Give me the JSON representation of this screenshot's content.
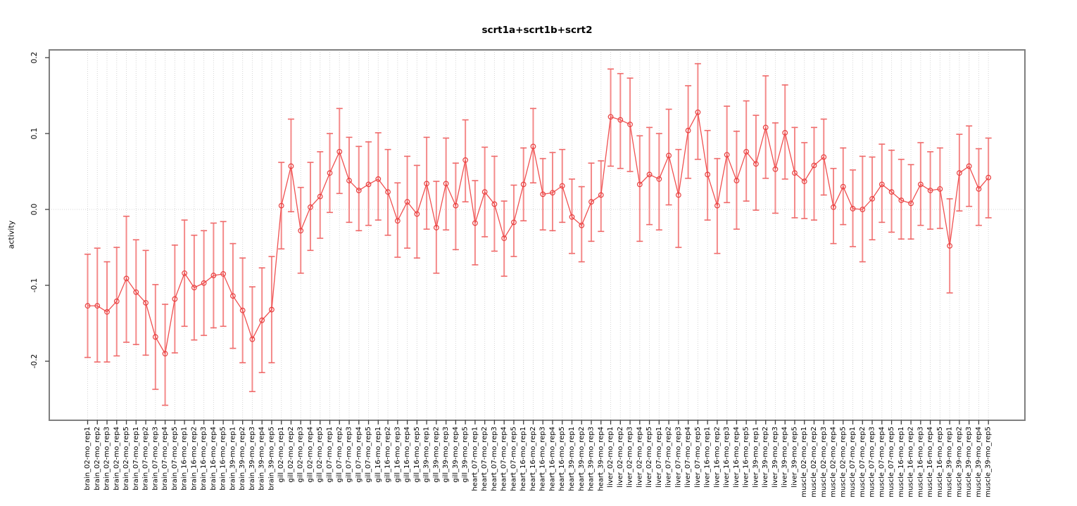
{
  "figure": {
    "title": "scrt1a+scrt1b+scrt2",
    "y_axis_label": "activity"
  },
  "chart_data": {
    "type": "line",
    "subtype": "points-with-error-bars",
    "title": "scrt1a+scrt1b+scrt2",
    "xlabel": "",
    "ylabel": "activity",
    "ylim": [
      -0.278,
      0.21
    ],
    "yticks": [
      "0.2",
      "0.1",
      "0.0",
      "-0.1",
      "-0.2"
    ],
    "ytick_values": [
      0.2,
      0.1,
      0.0,
      -0.1,
      -0.2
    ],
    "grid": "vertical dotted gridline at every category; dotted horizontal line at 0.0",
    "legend_position": "none",
    "marker": "open-circle",
    "categories_note": "tissue_age-mo_replicate; heart has no 02-mo group and heart_39-mo has only 4 reps (94 points total)",
    "points": [
      {
        "label": "brain_02-mo_rep1",
        "y": -0.127,
        "lo": -0.195,
        "hi": -0.059
      },
      {
        "label": "brain_02-mo_rep2",
        "y": -0.127,
        "lo": -0.201,
        "hi": -0.051
      },
      {
        "label": "brain_02-mo_rep3",
        "y": -0.135,
        "lo": -0.201,
        "hi": -0.069
      },
      {
        "label": "brain_02-mo_rep4",
        "y": -0.121,
        "lo": -0.193,
        "hi": -0.05
      },
      {
        "label": "brain_02-mo_rep5",
        "y": -0.091,
        "lo": -0.175,
        "hi": -0.009
      },
      {
        "label": "brain_07-mo_rep1",
        "y": -0.109,
        "lo": -0.178,
        "hi": -0.04
      },
      {
        "label": "brain_07-mo_rep2",
        "y": -0.123,
        "lo": -0.192,
        "hi": -0.054
      },
      {
        "label": "brain_07-mo_rep3",
        "y": -0.168,
        "lo": -0.237,
        "hi": -0.099
      },
      {
        "label": "brain_07-mo_rep4",
        "y": -0.19,
        "lo": -0.258,
        "hi": -0.125
      },
      {
        "label": "brain_07-mo_rep5",
        "y": -0.118,
        "lo": -0.189,
        "hi": -0.047
      },
      {
        "label": "brain_16-mo_rep1",
        "y": -0.084,
        "lo": -0.154,
        "hi": -0.014
      },
      {
        "label": "brain_16-mo_rep2",
        "y": -0.103,
        "lo": -0.172,
        "hi": -0.034
      },
      {
        "label": "brain_16-mo_rep3",
        "y": -0.097,
        "lo": -0.166,
        "hi": -0.028
      },
      {
        "label": "brain_16-mo_rep4",
        "y": -0.087,
        "lo": -0.156,
        "hi": -0.018
      },
      {
        "label": "brain_16-mo_rep5",
        "y": -0.085,
        "lo": -0.154,
        "hi": -0.016
      },
      {
        "label": "brain_39-mo_rep1",
        "y": -0.114,
        "lo": -0.183,
        "hi": -0.045
      },
      {
        "label": "brain_39-mo_rep2",
        "y": -0.133,
        "lo": -0.202,
        "hi": -0.064
      },
      {
        "label": "brain_39-mo_rep3",
        "y": -0.171,
        "lo": -0.24,
        "hi": -0.102
      },
      {
        "label": "brain_39-mo_rep4",
        "y": -0.146,
        "lo": -0.215,
        "hi": -0.077
      },
      {
        "label": "brain_39-mo_rep5",
        "y": -0.132,
        "lo": -0.202,
        "hi": -0.062
      },
      {
        "label": "gill_02-mo_rep1",
        "y": 0.005,
        "lo": -0.052,
        "hi": 0.062
      },
      {
        "label": "gill_02-mo_rep2",
        "y": 0.057,
        "lo": -0.003,
        "hi": 0.119
      },
      {
        "label": "gill_02-mo_rep3",
        "y": -0.028,
        "lo": -0.084,
        "hi": 0.029
      },
      {
        "label": "gill_02-mo_rep4",
        "y": 0.003,
        "lo": -0.054,
        "hi": 0.062
      },
      {
        "label": "gill_02-mo_rep5",
        "y": 0.017,
        "lo": -0.038,
        "hi": 0.076
      },
      {
        "label": "gill_07-mo_rep1",
        "y": 0.048,
        "lo": -0.004,
        "hi": 0.1
      },
      {
        "label": "gill_07-mo_rep2",
        "y": 0.076,
        "lo": 0.021,
        "hi": 0.133
      },
      {
        "label": "gill_07-mo_rep3",
        "y": 0.038,
        "lo": -0.017,
        "hi": 0.095
      },
      {
        "label": "gill_07-mo_rep4",
        "y": 0.025,
        "lo": -0.028,
        "hi": 0.083
      },
      {
        "label": "gill_07-mo_rep5",
        "y": 0.033,
        "lo": -0.021,
        "hi": 0.089
      },
      {
        "label": "gill_16-mo_rep1",
        "y": 0.04,
        "lo": -0.014,
        "hi": 0.101
      },
      {
        "label": "gill_16-mo_rep2",
        "y": 0.023,
        "lo": -0.034,
        "hi": 0.079
      },
      {
        "label": "gill_16-mo_rep3",
        "y": -0.015,
        "lo": -0.063,
        "hi": 0.035
      },
      {
        "label": "gill_16-mo_rep4",
        "y": 0.01,
        "lo": -0.051,
        "hi": 0.07
      },
      {
        "label": "gill_16-mo_rep5",
        "y": -0.006,
        "lo": -0.064,
        "hi": 0.058
      },
      {
        "label": "gill_39-mo_rep1",
        "y": 0.034,
        "lo": -0.026,
        "hi": 0.095
      },
      {
        "label": "gill_39-mo_rep2",
        "y": -0.024,
        "lo": -0.084,
        "hi": 0.037
      },
      {
        "label": "gill_39-mo_rep3",
        "y": 0.034,
        "lo": -0.027,
        "hi": 0.094
      },
      {
        "label": "gill_39-mo_rep4",
        "y": 0.005,
        "lo": -0.053,
        "hi": 0.061
      },
      {
        "label": "gill_39-mo_rep5",
        "y": 0.065,
        "lo": 0.01,
        "hi": 0.118
      },
      {
        "label": "heart_07-mo_rep1",
        "y": -0.018,
        "lo": -0.073,
        "hi": 0.038
      },
      {
        "label": "heart_07-mo_rep2",
        "y": 0.023,
        "lo": -0.036,
        "hi": 0.082
      },
      {
        "label": "heart_07-mo_rep3",
        "y": 0.007,
        "lo": -0.055,
        "hi": 0.07
      },
      {
        "label": "heart_07-mo_rep4",
        "y": -0.038,
        "lo": -0.088,
        "hi": 0.011
      },
      {
        "label": "heart_07-mo_rep5",
        "y": -0.017,
        "lo": -0.062,
        "hi": 0.032
      },
      {
        "label": "heart_16-mo_rep1",
        "y": 0.033,
        "lo": -0.015,
        "hi": 0.081
      },
      {
        "label": "heart_16-mo_rep2",
        "y": 0.083,
        "lo": 0.035,
        "hi": 0.133
      },
      {
        "label": "heart_16-mo_rep3",
        "y": 0.02,
        "lo": -0.027,
        "hi": 0.067
      },
      {
        "label": "heart_16-mo_rep4",
        "y": 0.022,
        "lo": -0.028,
        "hi": 0.075
      },
      {
        "label": "heart_16-mo_rep5",
        "y": 0.031,
        "lo": -0.017,
        "hi": 0.079
      },
      {
        "label": "heart_39-mo_rep1",
        "y": -0.01,
        "lo": -0.058,
        "hi": 0.04
      },
      {
        "label": "heart_39-mo_rep2",
        "y": -0.021,
        "lo": -0.069,
        "hi": 0.03
      },
      {
        "label": "heart_39-mo_rep3",
        "y": 0.01,
        "lo": -0.042,
        "hi": 0.061
      },
      {
        "label": "heart_39-mo_rep4",
        "y": 0.019,
        "lo": -0.029,
        "hi": 0.064
      },
      {
        "label": "liver_02-mo_rep1",
        "y": 0.122,
        "lo": 0.057,
        "hi": 0.185
      },
      {
        "label": "liver_02-mo_rep2",
        "y": 0.118,
        "lo": 0.054,
        "hi": 0.179
      },
      {
        "label": "liver_02-mo_rep3",
        "y": 0.112,
        "lo": 0.05,
        "hi": 0.173
      },
      {
        "label": "liver_02-mo_rep4",
        "y": 0.033,
        "lo": -0.042,
        "hi": 0.097
      },
      {
        "label": "liver_02-mo_rep5",
        "y": 0.046,
        "lo": -0.02,
        "hi": 0.108
      },
      {
        "label": "liver_07-mo_rep1",
        "y": 0.04,
        "lo": -0.027,
        "hi": 0.1
      },
      {
        "label": "liver_07-mo_rep2",
        "y": 0.071,
        "lo": 0.006,
        "hi": 0.132
      },
      {
        "label": "liver_07-mo_rep3",
        "y": 0.019,
        "lo": -0.05,
        "hi": 0.079
      },
      {
        "label": "liver_07-mo_rep4",
        "y": 0.104,
        "lo": 0.041,
        "hi": 0.163
      },
      {
        "label": "liver_07-mo_rep5",
        "y": 0.128,
        "lo": 0.066,
        "hi": 0.192
      },
      {
        "label": "liver_16-mo_rep1",
        "y": 0.046,
        "lo": -0.014,
        "hi": 0.104
      },
      {
        "label": "liver_16-mo_rep2",
        "y": 0.005,
        "lo": -0.058,
        "hi": 0.067
      },
      {
        "label": "liver_16-mo_rep3",
        "y": 0.072,
        "lo": 0.009,
        "hi": 0.136
      },
      {
        "label": "liver_16-mo_rep4",
        "y": 0.038,
        "lo": -0.026,
        "hi": 0.103
      },
      {
        "label": "liver_16-mo_rep5",
        "y": 0.076,
        "lo": 0.011,
        "hi": 0.143
      },
      {
        "label": "liver_39-mo_rep1",
        "y": 0.06,
        "lo": -0.001,
        "hi": 0.124
      },
      {
        "label": "liver_39-mo_rep2",
        "y": 0.108,
        "lo": 0.041,
        "hi": 0.176
      },
      {
        "label": "liver_39-mo_rep3",
        "y": 0.053,
        "lo": -0.005,
        "hi": 0.114
      },
      {
        "label": "liver_39-mo_rep4",
        "y": 0.101,
        "lo": 0.04,
        "hi": 0.164
      },
      {
        "label": "liver_39-mo_rep5",
        "y": 0.048,
        "lo": -0.011,
        "hi": 0.108
      },
      {
        "label": "muscle_02-mo_rep1",
        "y": 0.037,
        "lo": -0.012,
        "hi": 0.088
      },
      {
        "label": "muscle_02-mo_rep2",
        "y": 0.058,
        "lo": -0.014,
        "hi": 0.108
      },
      {
        "label": "muscle_02-mo_rep3",
        "y": 0.069,
        "lo": 0.019,
        "hi": 0.119
      },
      {
        "label": "muscle_02-mo_rep4",
        "y": 0.003,
        "lo": -0.045,
        "hi": 0.054
      },
      {
        "label": "muscle_02-mo_rep5",
        "y": 0.03,
        "lo": -0.02,
        "hi": 0.081
      },
      {
        "label": "muscle_07-mo_rep1",
        "y": 0.001,
        "lo": -0.049,
        "hi": 0.052
      },
      {
        "label": "muscle_07-mo_rep2",
        "y": 0.0,
        "lo": -0.069,
        "hi": 0.07
      },
      {
        "label": "muscle_07-mo_rep3",
        "y": 0.014,
        "lo": -0.04,
        "hi": 0.069
      },
      {
        "label": "muscle_07-mo_rep4",
        "y": 0.033,
        "lo": -0.017,
        "hi": 0.086
      },
      {
        "label": "muscle_07-mo_rep5",
        "y": 0.023,
        "lo": -0.03,
        "hi": 0.078
      },
      {
        "label": "muscle_16-mo_rep1",
        "y": 0.012,
        "lo": -0.039,
        "hi": 0.066
      },
      {
        "label": "muscle_16-mo_rep2",
        "y": 0.008,
        "lo": -0.039,
        "hi": 0.059
      },
      {
        "label": "muscle_16-mo_rep3",
        "y": 0.033,
        "lo": -0.021,
        "hi": 0.088
      },
      {
        "label": "muscle_16-mo_rep4",
        "y": 0.025,
        "lo": -0.026,
        "hi": 0.076
      },
      {
        "label": "muscle_16-mo_rep5",
        "y": 0.027,
        "lo": -0.025,
        "hi": 0.081
      },
      {
        "label": "muscle_39-mo_rep1",
        "y": -0.048,
        "lo": -0.11,
        "hi": 0.014
      },
      {
        "label": "muscle_39-mo_rep2",
        "y": 0.048,
        "lo": -0.002,
        "hi": 0.099
      },
      {
        "label": "muscle_39-mo_rep3",
        "y": 0.057,
        "lo": 0.004,
        "hi": 0.11
      },
      {
        "label": "muscle_39-mo_rep4",
        "y": 0.027,
        "lo": -0.021,
        "hi": 0.08
      },
      {
        "label": "muscle_39-mo_rep5",
        "y": 0.042,
        "lo": -0.011,
        "hi": 0.094
      }
    ]
  },
  "colors": {
    "background": "#ffffff",
    "series_line": "#f05050",
    "marker_stroke": "#e84040",
    "error_bar": "#f48a8a",
    "error_bar_cap": "#ef6a6a",
    "plot_frame": "#7f7f7f",
    "gridline": "#d4d4d4",
    "tick": "#404040",
    "text": "#000000"
  }
}
